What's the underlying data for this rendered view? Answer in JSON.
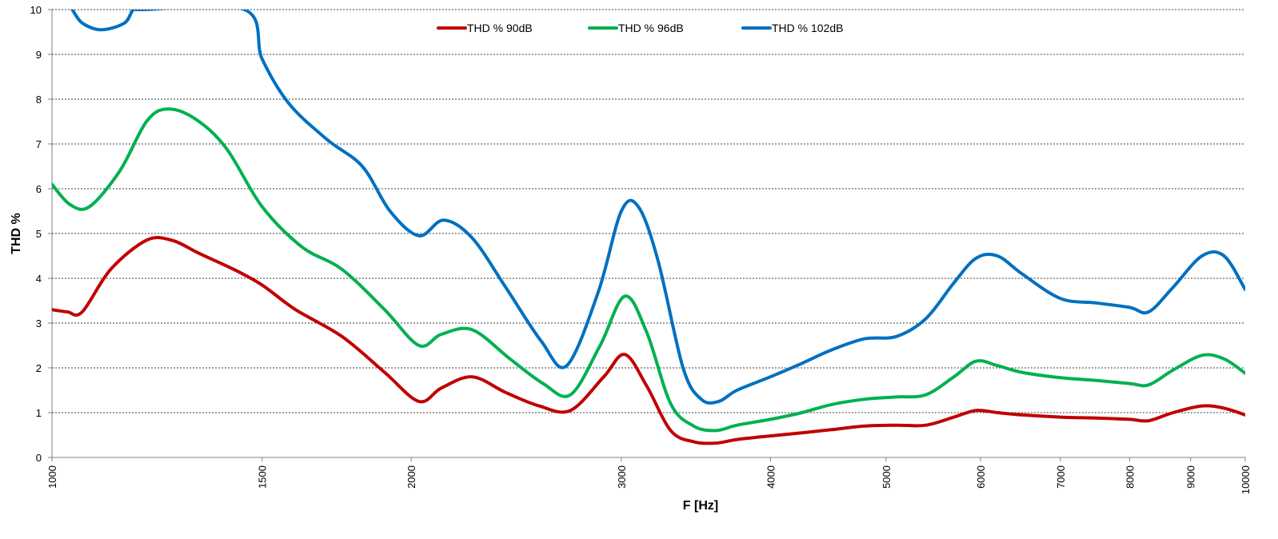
{
  "chart_data": {
    "type": "line",
    "title": "",
    "xlabel": "F [Hz]",
    "ylabel": "THD %",
    "x_scale": "log",
    "xlim": [
      1000,
      10000
    ],
    "ylim": [
      0,
      10
    ],
    "grid": "horizontal dashed",
    "legend_position": "top-center",
    "x_ticks": [
      1000,
      1500,
      2000,
      3000,
      4000,
      5000,
      6000,
      7000,
      8000,
      9000,
      10000
    ],
    "x_tick_labels": [
      "1000",
      "1500",
      "2000",
      "3000",
      "4000",
      "5000",
      "6000",
      "7000",
      "8000",
      "9000",
      "10000"
    ],
    "y_ticks": [
      0,
      1,
      2,
      3,
      4,
      5,
      6,
      7,
      8,
      9,
      10
    ],
    "y_tick_labels": [
      "0",
      "1",
      "2",
      "3",
      "4",
      "5",
      "6",
      "7",
      "8",
      "9",
      "10"
    ],
    "series": [
      {
        "name": "THD % 90dB",
        "color": "#C00000",
        "x": [
          1000,
          1030,
          1060,
          1120,
          1200,
          1260,
          1330,
          1420,
          1500,
          1600,
          1750,
          1900,
          2030,
          2120,
          2250,
          2400,
          2560,
          2720,
          2900,
          3020,
          3150,
          3300,
          3450,
          3600,
          3750,
          4000,
          4250,
          4500,
          4800,
          5100,
          5400,
          5700,
          5950,
          6200,
          6500,
          7000,
          7500,
          8000,
          8300,
          8700,
          9200,
          9600,
          10000
        ],
        "y": [
          3.3,
          3.25,
          3.25,
          4.2,
          4.85,
          4.85,
          4.55,
          4.2,
          3.85,
          3.3,
          2.7,
          1.9,
          1.25,
          1.55,
          1.8,
          1.45,
          1.15,
          1.05,
          1.8,
          2.3,
          1.6,
          0.6,
          0.35,
          0.32,
          0.4,
          0.48,
          0.55,
          0.62,
          0.7,
          0.72,
          0.72,
          0.9,
          1.05,
          1.0,
          0.95,
          0.9,
          0.88,
          0.85,
          0.82,
          1.0,
          1.15,
          1.1,
          0.95
        ]
      },
      {
        "name": "THD % 96dB",
        "color": "#00B050",
        "x": [
          1000,
          1035,
          1075,
          1140,
          1200,
          1250,
          1320,
          1400,
          1500,
          1620,
          1750,
          1900,
          2030,
          2120,
          2250,
          2420,
          2580,
          2720,
          2880,
          3020,
          3150,
          3300,
          3450,
          3600,
          3750,
          4000,
          4250,
          4500,
          4800,
          5100,
          5400,
          5700,
          5950,
          6200,
          6500,
          7000,
          7500,
          8000,
          8300,
          8700,
          9200,
          9600,
          10000
        ],
        "y": [
          6.1,
          5.65,
          5.6,
          6.4,
          7.5,
          7.78,
          7.55,
          6.9,
          5.6,
          4.7,
          4.2,
          3.3,
          2.5,
          2.75,
          2.85,
          2.2,
          1.65,
          1.4,
          2.5,
          3.6,
          2.8,
          1.2,
          0.7,
          0.6,
          0.72,
          0.85,
          1.0,
          1.18,
          1.3,
          1.35,
          1.4,
          1.8,
          2.15,
          2.05,
          1.9,
          1.78,
          1.72,
          1.65,
          1.62,
          1.95,
          2.28,
          2.2,
          1.88
        ]
      },
      {
        "name": "THD % 102dB",
        "color": "#0070C0",
        "x": [
          1040,
          1060,
          1100,
          1150,
          1170,
          1190,
          1450,
          1500,
          1580,
          1700,
          1820,
          1920,
          2030,
          2130,
          2250,
          2400,
          2570,
          2700,
          2870,
          3000,
          3100,
          3220,
          3380,
          3500,
          3620,
          3750,
          4000,
          4250,
          4500,
          4800,
          5100,
          5400,
          5700,
          5950,
          6200,
          6500,
          7000,
          7500,
          8000,
          8300,
          8700,
          9200,
          9600,
          10000
        ],
        "y": [
          10.0,
          9.7,
          9.55,
          9.7,
          10.0,
          10.0,
          10.0,
          8.9,
          7.9,
          7.1,
          6.5,
          5.5,
          4.95,
          5.3,
          4.9,
          3.8,
          2.6,
          2.05,
          3.7,
          5.5,
          5.6,
          4.4,
          2.0,
          1.3,
          1.25,
          1.5,
          1.8,
          2.1,
          2.4,
          2.65,
          2.7,
          3.1,
          3.9,
          4.45,
          4.5,
          4.1,
          3.55,
          3.45,
          3.35,
          3.25,
          3.8,
          4.5,
          4.5,
          3.75
        ]
      }
    ]
  }
}
